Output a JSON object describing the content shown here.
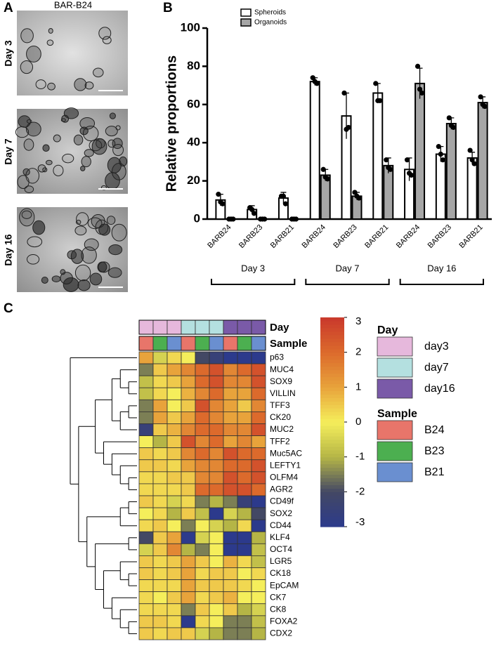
{
  "panel_labels": [
    "A",
    "B",
    "C"
  ],
  "images": {
    "title": "BAR-B24",
    "labels": [
      "Day 3",
      "Day 7",
      "Day 16"
    ]
  },
  "chart_data": [
    {
      "type": "bar",
      "ylabel": "Relative proportions",
      "categories": [
        "BARB24",
        "BARB23",
        "BARB21",
        "BARB24",
        "BARB23",
        "BARB21",
        "BARB24",
        "BARB23",
        "BARB21"
      ],
      "group_labels": [
        "Day 3",
        "Day 7",
        "Day 16"
      ],
      "series": [
        {
          "name": "Spheroids",
          "color": "#ffffff",
          "values": [
            10,
            5,
            11,
            72,
            54,
            66,
            26,
            34,
            32
          ],
          "errors": [
            3,
            2,
            3,
            2,
            12,
            5,
            6,
            4,
            3
          ],
          "points": [
            [
              13,
              8,
              9
            ],
            [
              6,
              3,
              5
            ],
            [
              12,
              8,
              12
            ],
            [
              74,
              71,
              72
            ],
            [
              66,
              48,
              47
            ],
            [
              71,
              62,
              62
            ],
            [
              31,
              23,
              24
            ],
            [
              38,
              31,
              34
            ],
            [
              36,
              29,
              31
            ]
          ]
        },
        {
          "name": "Organoids",
          "color": "#a6a6a6",
          "values": [
            0,
            0,
            0,
            23,
            12,
            28,
            71,
            50,
            61
          ],
          "errors": [
            0.3,
            0.3,
            0.3,
            3,
            2,
            4,
            8,
            3,
            3
          ],
          "points": [
            [
              0,
              0,
              0
            ],
            [
              0,
              0,
              0
            ],
            [
              0,
              0,
              0
            ],
            [
              26,
              21,
              22
            ],
            [
              14,
              11,
              12
            ],
            [
              31,
              26,
              27
            ],
            [
              80,
              66,
              68
            ],
            [
              53,
              48,
              49
            ],
            [
              64,
              59,
              60
            ]
          ]
        }
      ],
      "ylim": [
        0,
        100
      ],
      "yticks": [
        0,
        20,
        40,
        60,
        80,
        100
      ]
    },
    {
      "type": "heatmap",
      "rows": [
        "p63",
        "MUC4",
        "SOX9",
        "VILLIN",
        "TFF3",
        "CK20",
        "MUC2",
        "TFF2",
        "Muc5AC",
        "LEFTY1",
        "OLFM4",
        "AGR2",
        "CD49f",
        "SOX2",
        "CD44",
        "KLF4",
        "OCT4",
        "LGR5",
        "CK18",
        "EpCAM",
        "CK7",
        "CK8",
        "FOXA2",
        "CDX2"
      ],
      "annotations": [
        {
          "name": "Day",
          "values": [
            "day3",
            "day3",
            "day3",
            "day7",
            "day7",
            "day7",
            "day16",
            "day16",
            "day16"
          ]
        },
        {
          "name": "Sample",
          "values": [
            "B24",
            "B23",
            "B21",
            "B24",
            "B23",
            "B21",
            "B24",
            "B23",
            "B21"
          ]
        }
      ],
      "values": [
        [
          1,
          -0.5,
          0.3,
          0,
          -2,
          -2.5,
          -3,
          -3,
          -3
        ],
        [
          -1.5,
          0.5,
          1,
          1.5,
          2,
          2.5,
          1.5,
          2,
          2.5
        ],
        [
          -0.8,
          0.3,
          0.5,
          1,
          2,
          2.5,
          1.5,
          1.5,
          2.5
        ],
        [
          -0.8,
          0.3,
          0,
          0.8,
          1.5,
          2,
          1,
          1,
          2
        ],
        [
          -1.5,
          1,
          0,
          0.5,
          2.5,
          1.5,
          1,
          0.5,
          1.5
        ],
        [
          -1.5,
          1,
          0.5,
          1,
          2,
          1.5,
          1,
          1,
          2
        ],
        [
          -2.5,
          0.5,
          0.8,
          1.5,
          2,
          2,
          1.5,
          1.5,
          2.5
        ],
        [
          0,
          -1,
          0.5,
          2.5,
          1.5,
          2,
          1,
          1.5,
          1
        ],
        [
          0.5,
          0.3,
          0.5,
          1.5,
          2,
          1.5,
          2.5,
          2,
          2
        ],
        [
          0.5,
          0.5,
          0.3,
          1,
          1.5,
          1.5,
          2,
          2,
          2.5
        ],
        [
          0.3,
          0.3,
          0.5,
          0.5,
          1.5,
          1.5,
          2.5,
          2,
          2.5
        ],
        [
          0.3,
          0.3,
          0.3,
          0.5,
          2,
          2,
          2.5,
          2.5,
          2
        ],
        [
          0.5,
          0.3,
          -0.5,
          0.3,
          -1.5,
          -1,
          -1.5,
          -2.5,
          -3
        ],
        [
          0,
          0.3,
          -1,
          0.5,
          -0.8,
          -3,
          -0.5,
          -1,
          -2
        ],
        [
          0.3,
          0.5,
          0,
          -1.5,
          0,
          -0.5,
          -1,
          0.3,
          -3
        ],
        [
          -2,
          0.5,
          1,
          -3,
          -0.5,
          0,
          -3,
          -3,
          -1
        ],
        [
          -0.5,
          0.5,
          1.5,
          -1,
          -1.5,
          0,
          -3,
          -3,
          -0.8
        ],
        [
          0.5,
          0.3,
          0.5,
          1,
          0.5,
          0,
          0.8,
          0.3,
          -0.8
        ],
        [
          0.5,
          0.3,
          0.5,
          1,
          0.3,
          0.5,
          0.5,
          0,
          0.3
        ],
        [
          0.3,
          0.3,
          0.3,
          1,
          0.5,
          0.5,
          0.5,
          0.3,
          0
        ],
        [
          0.3,
          0,
          0.5,
          1,
          0.3,
          0.5,
          0.8,
          0,
          0
        ],
        [
          0.3,
          0.3,
          0.3,
          -1.5,
          0.5,
          0,
          0.5,
          -1,
          -0.5
        ],
        [
          0.5,
          0.5,
          0.3,
          -3,
          0.3,
          0,
          -1.5,
          -1.5,
          -0.8
        ],
        [
          0.5,
          0.3,
          0.5,
          0.5,
          -0.5,
          -1,
          -1.5,
          -1.5,
          -1
        ]
      ],
      "zlim": [
        -3,
        3
      ],
      "zticks": [
        3,
        2,
        1,
        0,
        -1,
        -2,
        -3
      ],
      "colorscale": [
        [
          -3,
          "#2c3a8c"
        ],
        [
          -2,
          "#434864"
        ],
        [
          -1,
          "#b5b546"
        ],
        [
          0,
          "#f5ee5b"
        ],
        [
          1,
          "#e8a33b"
        ],
        [
          2,
          "#dc6a2c"
        ],
        [
          3,
          "#c9392c"
        ]
      ],
      "legends": [
        {
          "title": "Day",
          "items": [
            {
              "label": "day3",
              "color": "#e6b8dc"
            },
            {
              "label": "day7",
              "color": "#b4e0e0"
            },
            {
              "label": "day16",
              "color": "#7a5aa8"
            }
          ]
        },
        {
          "title": "Sample",
          "items": [
            {
              "label": "B24",
              "color": "#e8756a"
            },
            {
              "label": "B23",
              "color": "#4caf50"
            },
            {
              "label": "B21",
              "color": "#6a8fd0"
            }
          ]
        }
      ]
    }
  ]
}
